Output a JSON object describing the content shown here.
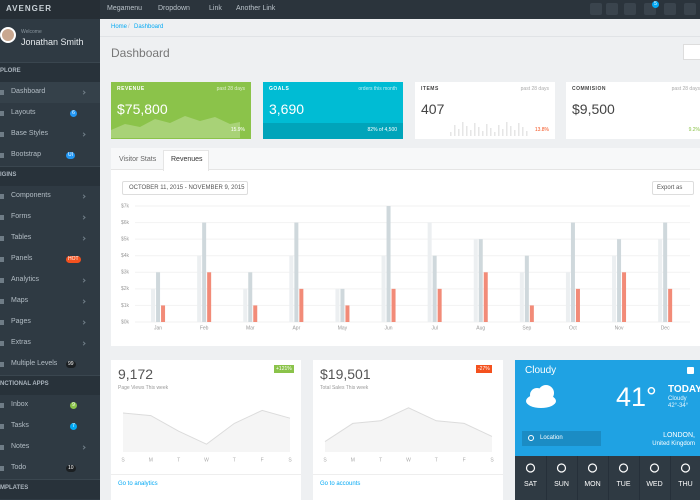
{
  "topbar": {
    "brand": "AVENGER",
    "nav": [
      "Megamenu",
      "Dropdown",
      "Link",
      "Another Link"
    ],
    "badge": "5"
  },
  "sidebar": {
    "welcome": "Welcome",
    "user": "Jonathan Smith",
    "groups": [
      {
        "title": "PLORE",
        "items": [
          {
            "label": "Dashboard"
          },
          {
            "label": "Layouts",
            "badge": "6",
            "color": "#2196f3"
          },
          {
            "label": "Base Styles"
          },
          {
            "label": "Bootstrap",
            "badge": "UI",
            "color": "#2196f3"
          }
        ]
      },
      {
        "title": "IGINS",
        "items": [
          {
            "label": "Components"
          },
          {
            "label": "Forms"
          },
          {
            "label": "Tables"
          },
          {
            "label": "Panels",
            "badge": "HOT",
            "color": "#f4511e"
          },
          {
            "label": "Analytics"
          },
          {
            "label": "Maps"
          },
          {
            "label": "Pages"
          },
          {
            "label": "Extras"
          },
          {
            "label": "Multiple Levels",
            "badge": "99",
            "color": "#1b1f22"
          }
        ]
      },
      {
        "title": "NCTIONAL APPS",
        "items": [
          {
            "label": "Inbox",
            "badge": "9",
            "color": "#8bc34a"
          },
          {
            "label": "Tasks",
            "badge": "7",
            "color": "#03a9f4"
          },
          {
            "label": "Notes"
          },
          {
            "label": "Todo",
            "badge": "10",
            "color": "#1b1f22"
          }
        ]
      },
      {
        "title": "MPLATES",
        "items": []
      }
    ]
  },
  "breadcrumb": [
    "Home",
    "Dashboard"
  ],
  "page_title": "Dashboard",
  "stats": [
    {
      "label": "REVENUE",
      "period": "past 28 days",
      "value": "$75,800",
      "change": "15.9%",
      "color": "#8bc34a"
    },
    {
      "label": "GOALS",
      "period": "orders this month",
      "value": "3,690",
      "change": "82% of 4,500",
      "color": "#00bcd4"
    },
    {
      "label": "ITEMS",
      "period": "past 28 days",
      "value": "407",
      "change": "13.8%",
      "color": "#ffffff"
    },
    {
      "label": "COMMISION",
      "period": "past 28 days",
      "value": "$9,500",
      "change": "9.2%",
      "color": "#ffffff"
    }
  ],
  "revenue_panel": {
    "tabs": [
      "Visitor Stats",
      "Revenues"
    ],
    "date_range": "OCTOBER 11, 2015 - NOVEMBER 9, 2015",
    "export": "Export as",
    "chart_data": {
      "type": "bar",
      "categories": [
        "Jan",
        "Feb",
        "Mar",
        "Apr",
        "May",
        "Jun",
        "Jul",
        "Aug",
        "Sep",
        "Oct",
        "Nov",
        "Dec"
      ],
      "series": [
        {
          "color": "#eceff1",
          "values": [
            2,
            4,
            2,
            4,
            2,
            4,
            6,
            5,
            3,
            3,
            4,
            5
          ]
        },
        {
          "color": "#cfd8dc",
          "values": [
            3,
            6,
            3,
            6,
            2,
            7,
            4,
            5,
            4,
            6,
            5,
            6
          ]
        },
        {
          "color": "#f28b78",
          "values": [
            1,
            3,
            1,
            2,
            1,
            2,
            2,
            3,
            1,
            2,
            3,
            2
          ]
        }
      ],
      "ylim": [
        0,
        7
      ],
      "yticks": [
        {
          "value": 0,
          "label": "$0k"
        },
        {
          "value": 1,
          "label": "$1k"
        },
        {
          "value": 2,
          "label": "$2k"
        },
        {
          "value": 3,
          "label": "$3k"
        },
        {
          "value": 4,
          "label": "$4k"
        },
        {
          "value": 5,
          "label": "$5k"
        },
        {
          "value": 6,
          "label": "$6k"
        },
        {
          "value": 7,
          "label": "$7k"
        }
      ],
      "grid": true
    }
  },
  "small_cards": [
    {
      "value": "9,172",
      "caption": "Page Views This week",
      "badge": "+121%",
      "badge_color": "#8bc34a",
      "link": "Go to analytics",
      "chart_data": {
        "type": "line",
        "categories": [
          "S",
          "M",
          "T",
          "W",
          "T",
          "F",
          "S"
        ],
        "values": [
          75,
          70,
          40,
          15,
          55,
          80,
          65
        ],
        "ylim": [
          0,
          100
        ],
        "color": "#dcdcdc"
      }
    },
    {
      "value": "$19,501",
      "caption": "Total Sales This week",
      "badge": "-27%",
      "badge_color": "#f4511e",
      "link": "Go to accounts",
      "chart_data": {
        "type": "line",
        "categories": [
          "S",
          "M",
          "T",
          "W",
          "T",
          "F",
          "S"
        ],
        "values": [
          20,
          55,
          60,
          85,
          60,
          55,
          30
        ],
        "ylim": [
          0,
          100
        ],
        "color": "#dcdcdc"
      }
    }
  ],
  "weather": {
    "condition": "Cloudy",
    "temp": "41°",
    "today": "TODAY",
    "today_condition": "Cloudy",
    "range": "42°-34°",
    "location_button": "Location",
    "city": "LONDON,",
    "country": "United Kingdom",
    "days": [
      "SAT",
      "SUN",
      "MON",
      "TUE",
      "WED",
      "THU"
    ]
  }
}
